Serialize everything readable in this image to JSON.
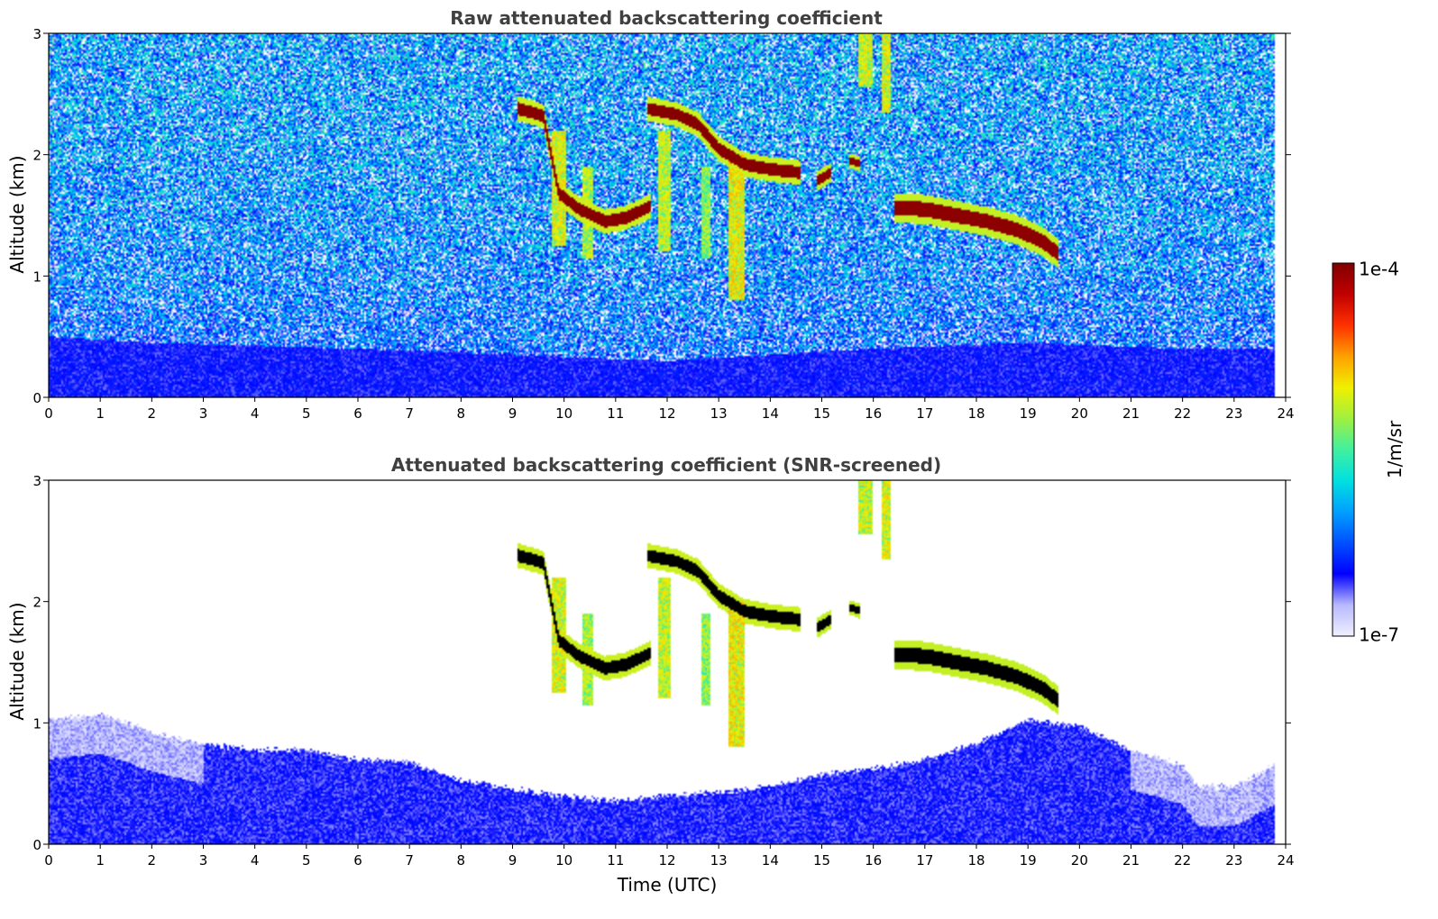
{
  "chart_data": [
    {
      "type": "heatmap",
      "title": "Raw attenuated backscattering coefficient",
      "xlabel": "",
      "ylabel": "Altitude (km)",
      "xlim": [
        0,
        24
      ],
      "ylim": [
        0,
        3
      ],
      "x_ticks": [
        "0",
        "1",
        "2",
        "3",
        "4",
        "5",
        "6",
        "7",
        "8",
        "9",
        "10",
        "11",
        "12",
        "13",
        "14",
        "15",
        "16",
        "17",
        "18",
        "19",
        "20",
        "21",
        "22",
        "23",
        "24"
      ],
      "y_ticks": [
        "0",
        "1",
        "2",
        "3"
      ],
      "data_end_time": 23.8,
      "features": [
        {
          "kind": "layer",
          "points": [
            [
              9.1,
              2.38
            ],
            [
              9.6,
              2.32
            ],
            [
              9.9,
              1.68
            ],
            [
              10.3,
              1.55
            ],
            [
              10.8,
              1.45
            ],
            [
              11.2,
              1.48
            ],
            [
              11.7,
              1.58
            ]
          ],
          "thickness": 0.1,
          "value": 9.5e-05
        },
        {
          "kind": "layer",
          "points": [
            [
              11.6,
              2.38
            ],
            [
              12.2,
              2.33
            ],
            [
              12.6,
              2.25
            ],
            [
              13.0,
              2.05
            ],
            [
              13.5,
              1.92
            ],
            [
              14.0,
              1.88
            ],
            [
              14.6,
              1.85
            ]
          ],
          "thickness": 0.1,
          "value": 9.5e-05
        },
        {
          "kind": "layer",
          "points": [
            [
              14.9,
              1.78
            ],
            [
              15.2,
              1.86
            ]
          ],
          "thickness": 0.08,
          "value": 9e-05
        },
        {
          "kind": "layer",
          "points": [
            [
              15.55,
              1.95
            ],
            [
              15.75,
              1.92
            ]
          ],
          "thickness": 0.06,
          "value": 9e-05
        },
        {
          "kind": "layer",
          "points": [
            [
              16.4,
              1.56
            ],
            [
              17.0,
              1.55
            ],
            [
              17.6,
              1.5
            ],
            [
              18.2,
              1.45
            ],
            [
              18.8,
              1.38
            ],
            [
              19.3,
              1.28
            ],
            [
              19.6,
              1.18
            ]
          ],
          "thickness": 0.12,
          "value": 9e-05
        },
        {
          "kind": "fallstreak",
          "x": 9.9,
          "top": 2.2,
          "bottom": 1.25,
          "width": 0.25,
          "value": 8e-06
        },
        {
          "kind": "fallstreak",
          "x": 10.45,
          "top": 1.9,
          "bottom": 1.15,
          "width": 0.2,
          "value": 6e-06
        },
        {
          "kind": "fallstreak",
          "x": 11.95,
          "top": 2.2,
          "bottom": 1.2,
          "width": 0.25,
          "value": 7e-06
        },
        {
          "kind": "fallstreak",
          "x": 12.75,
          "top": 1.9,
          "bottom": 1.15,
          "width": 0.2,
          "value": 5e-06
        },
        {
          "kind": "fallstreak",
          "x": 13.35,
          "top": 2.0,
          "bottom": 0.8,
          "width": 0.3,
          "value": 9e-06
        },
        {
          "kind": "fallstreak",
          "x": 15.85,
          "top": 3.0,
          "bottom": 2.55,
          "width": 0.25,
          "value": 7e-06
        },
        {
          "kind": "fallstreak",
          "x": 16.25,
          "top": 3.0,
          "bottom": 2.35,
          "width": 0.15,
          "value": 8e-06
        }
      ],
      "boundary_layer_top_km": [
        [
          0,
          0.5
        ],
        [
          2,
          0.45
        ],
        [
          6,
          0.4
        ],
        [
          9,
          0.35
        ],
        [
          12,
          0.3
        ],
        [
          16,
          0.4
        ],
        [
          19,
          0.45
        ],
        [
          22,
          0.4
        ],
        [
          23.8,
          0.4
        ]
      ]
    },
    {
      "type": "heatmap",
      "title": "Attenuated backscattering coefficient (SNR-screened)",
      "xlabel": "Time (UTC)",
      "ylabel": "Altitude (km)",
      "xlim": [
        0,
        24
      ],
      "ylim": [
        0,
        3
      ],
      "x_ticks": [
        "0",
        "1",
        "2",
        "3",
        "4",
        "5",
        "6",
        "7",
        "8",
        "9",
        "10",
        "11",
        "12",
        "13",
        "14",
        "15",
        "16",
        "17",
        "18",
        "19",
        "20",
        "21",
        "22",
        "23",
        "24"
      ],
      "y_ticks": [
        "0",
        "1",
        "2",
        "3"
      ],
      "data_end_time": 23.8,
      "cloud_core_color": "#000000",
      "boundary_layer_top_km": [
        [
          0,
          1.05
        ],
        [
          1,
          1.1
        ],
        [
          2,
          0.95
        ],
        [
          3,
          0.85
        ],
        [
          4,
          0.8
        ],
        [
          5,
          0.8
        ],
        [
          6,
          0.72
        ],
        [
          7,
          0.7
        ],
        [
          8,
          0.55
        ],
        [
          9,
          0.48
        ],
        [
          10,
          0.42
        ],
        [
          11,
          0.38
        ],
        [
          12,
          0.42
        ],
        [
          13,
          0.45
        ],
        [
          14,
          0.5
        ],
        [
          15,
          0.6
        ],
        [
          16,
          0.65
        ],
        [
          17,
          0.72
        ],
        [
          18,
          0.85
        ],
        [
          19,
          1.05
        ],
        [
          20,
          1.0
        ],
        [
          21,
          0.8
        ],
        [
          22,
          0.68
        ],
        [
          22.3,
          0.5
        ],
        [
          23,
          0.5
        ],
        [
          23.8,
          0.68
        ]
      ]
    }
  ],
  "colorbar": {
    "label": "1/m/sr",
    "max_label": "1e-4",
    "min_label": "1e-7",
    "scale": "log",
    "range": [
      1e-07,
      0.0001
    ],
    "colormap": [
      "#f0f0ff",
      "#b8b8ff",
      "#0000ff",
      "#0050ff",
      "#00a0ff",
      "#00e0e0",
      "#40f0a0",
      "#a0f040",
      "#f0f000",
      "#ffa000",
      "#ff3000",
      "#c00000",
      "#800000"
    ]
  }
}
